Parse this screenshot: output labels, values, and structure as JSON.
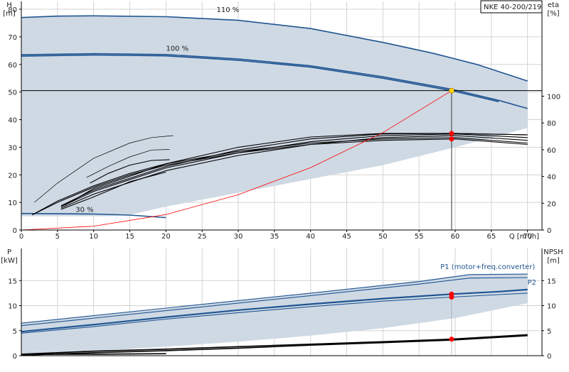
{
  "product_label": "NKE 40-200/219",
  "colors": {
    "envelope_fill": "#cfd9e4",
    "pump_curve": "#1f5591",
    "efficiency": "#000000",
    "system_curve": "#ff0000",
    "operating_point": "#ffd700",
    "marker": "#ff0000"
  },
  "chart_data": [
    {
      "type": "line",
      "id": "head",
      "left_axis_title": [
        "H",
        "[m]"
      ],
      "right_axis_title": [
        "eta",
        "[%]"
      ],
      "xlabel": "Q [m³/h]",
      "xlim": [
        0,
        72
      ],
      "ylim": [
        0,
        80
      ],
      "x_ticks": [
        0,
        5,
        10,
        15,
        20,
        25,
        30,
        35,
        40,
        45,
        50,
        55,
        60,
        65,
        70
      ],
      "y_ticks": [
        0,
        10,
        20,
        30,
        40,
        50,
        60,
        70,
        80
      ],
      "right_ticks": [
        0,
        20,
        40,
        60,
        80,
        100
      ],
      "right_lim": [
        0,
        165
      ],
      "grid": true,
      "envelope": [
        [
          0,
          77
        ],
        [
          5,
          77.5
        ],
        [
          10,
          77.6
        ],
        [
          20,
          77.3
        ],
        [
          30,
          76
        ],
        [
          40,
          73
        ],
        [
          50,
          68
        ],
        [
          57,
          64
        ],
        [
          63,
          60
        ],
        [
          70,
          54
        ],
        [
          70,
          37
        ],
        [
          60,
          30
        ],
        [
          50,
          23.5
        ],
        [
          40,
          18.5
        ],
        [
          30,
          13.5
        ],
        [
          20,
          8.5
        ],
        [
          15,
          5.5
        ],
        [
          12,
          5
        ],
        [
          5,
          5
        ],
        [
          0,
          5
        ]
      ],
      "series": [
        {
          "name": "110 %",
          "kind": "head",
          "points": [
            [
              0,
              77
            ],
            [
              5,
              77.5
            ],
            [
              10,
              77.6
            ],
            [
              20,
              77.3
            ],
            [
              30,
              76
            ],
            [
              40,
              73
            ],
            [
              50,
              68
            ],
            [
              57,
              64
            ],
            [
              63,
              60
            ],
            [
              70,
              54
            ]
          ]
        },
        {
          "name": "100 %",
          "kind": "head",
          "points": [
            [
              0,
              63.5
            ],
            [
              10,
              63.9
            ],
            [
              20,
              63.6
            ],
            [
              30,
              62
            ],
            [
              40,
              59.5
            ],
            [
              50,
              55.5
            ],
            [
              59.5,
              51
            ],
            [
              66,
              47
            ],
            [
              70,
              44
            ]
          ]
        },
        {
          "kind": "head",
          "points": [
            [
              0,
              63
            ],
            [
              10,
              63.4
            ],
            [
              20,
              63.1
            ],
            [
              30,
              61.5
            ],
            [
              40,
              59
            ],
            [
              50,
              55
            ],
            [
              59.5,
              50.5
            ],
            [
              66,
              46.5
            ]
          ]
        },
        {
          "name": "30 %",
          "kind": "head",
          "points": [
            [
              0,
              6
            ],
            [
              10,
              5.8
            ],
            [
              15,
              5.4
            ],
            [
              20,
              4.5
            ]
          ]
        },
        {
          "kind": "eff",
          "points": [
            [
              1.5,
              5.5
            ],
            [
              5,
              10
            ],
            [
              10,
              15.5
            ],
            [
              15,
              20
            ],
            [
              20,
              23.5
            ],
            [
              30,
              28
            ],
            [
              40,
              31
            ],
            [
              50,
              32.5
            ],
            [
              60,
              33
            ],
            [
              70,
              31
            ]
          ]
        },
        {
          "kind": "eff",
          "points": [
            [
              1.5,
              5.5
            ],
            [
              5,
              10.5
            ],
            [
              10,
              16
            ],
            [
              15,
              20.5
            ],
            [
              20,
              24
            ],
            [
              30,
              28.5
            ],
            [
              40,
              31.5
            ],
            [
              50,
              33
            ],
            [
              60,
              33.5
            ],
            [
              70,
              31.5
            ]
          ]
        },
        {
          "kind": "eff",
          "points": [
            [
              5.5,
              8
            ],
            [
              10,
              13
            ],
            [
              20,
              21.5
            ],
            [
              30,
              27
            ],
            [
              40,
              31
            ],
            [
              50,
              33.5
            ],
            [
              60,
              34.2
            ],
            [
              70,
              32.5
            ]
          ]
        },
        {
          "kind": "eff",
          "points": [
            [
              5.5,
              8.5
            ],
            [
              10,
              14
            ],
            [
              20,
              22.5
            ],
            [
              30,
              28
            ],
            [
              40,
              32
            ],
            [
              50,
              34.2
            ],
            [
              60,
              34.8
            ],
            [
              70,
              33.5
            ]
          ]
        },
        {
          "kind": "eff",
          "points": [
            [
              5.5,
              8.8
            ],
            [
              10,
              14.5
            ],
            [
              20,
              23
            ],
            [
              30,
              29
            ],
            [
              40,
              33
            ],
            [
              50,
              34.8
            ],
            [
              60,
              35
            ],
            [
              70,
              34.5
            ]
          ]
        },
        {
          "kind": "eff",
          "points": [
            [
              6,
              9
            ],
            [
              10,
              15
            ],
            [
              20,
              24
            ],
            [
              30,
              30
            ],
            [
              40,
              33.7
            ],
            [
              50,
              35
            ],
            [
              60,
              35
            ],
            [
              70,
              34.5
            ]
          ]
        },
        {
          "kind": "eff",
          "points": [
            [
              5.5,
              7.5
            ],
            [
              10,
              12
            ],
            [
              15,
              17.5
            ],
            [
              20,
              21
            ]
          ]
        },
        {
          "kind": "eff",
          "points": [
            [
              9.5,
              17
            ],
            [
              12,
              20.5
            ],
            [
              15,
              23.5
            ],
            [
              18,
              25.2
            ],
            [
              20.5,
              25.5
            ]
          ]
        },
        {
          "kind": "eff-thin",
          "points": [
            [
              1.8,
              10
            ],
            [
              5,
              17
            ],
            [
              10,
              26
            ],
            [
              15,
              31.5
            ],
            [
              18,
              33.5
            ],
            [
              21,
              34.2
            ]
          ]
        },
        {
          "kind": "eff-thin",
          "points": [
            [
              9,
              19
            ],
            [
              12,
              23
            ],
            [
              15,
              26.5
            ],
            [
              18,
              29
            ],
            [
              20.5,
              29.2
            ]
          ]
        },
        {
          "kind": "system",
          "points": [
            [
              0,
              0
            ],
            [
              10,
              1.4
            ],
            [
              20,
              5.6
            ],
            [
              30,
              12.8
            ],
            [
              40,
              22.6
            ],
            [
              50,
              35.3
            ],
            [
              59.5,
              50.5
            ]
          ]
        }
      ],
      "duty_line_h": 50.5,
      "operating_point": [
        59.5,
        50.5
      ],
      "duty_q": 59.5,
      "markers": [
        [
          59.5,
          35
        ],
        [
          59.5,
          33
        ]
      ]
    },
    {
      "type": "line",
      "id": "power",
      "left_axis_title": [
        "P",
        "[kW]"
      ],
      "right_axis_title": [
        "NPSH",
        "[m]"
      ],
      "xlim": [
        0,
        72
      ],
      "ylim": [
        0,
        20
      ],
      "y_ticks": [
        0,
        5,
        10,
        15
      ],
      "right_ticks": [
        0,
        5,
        10,
        15
      ],
      "grid": true,
      "envelope": [
        [
          0,
          6.5
        ],
        [
          20,
          9.5
        ],
        [
          40,
          12.5
        ],
        [
          55,
          15
        ],
        [
          62,
          16.3
        ],
        [
          70,
          16.3
        ],
        [
          70,
          10.5
        ],
        [
          60,
          7.5
        ],
        [
          50,
          5.5
        ],
        [
          40,
          4
        ],
        [
          30,
          2.8
        ],
        [
          20,
          1.8
        ],
        [
          10,
          0.9
        ],
        [
          0,
          0.2
        ]
      ],
      "series": [
        {
          "name": "P1 (motor+freq.converter)",
          "kind": "power-thin",
          "points": [
            [
              0,
              6.5
            ],
            [
              20,
              9.5
            ],
            [
              40,
              12.5
            ],
            [
              55,
              14.8
            ],
            [
              62,
              16.2
            ],
            [
              70,
              16.3
            ]
          ]
        },
        {
          "kind": "power-thin",
          "points": [
            [
              0,
              6
            ],
            [
              20,
              9
            ],
            [
              40,
              12
            ],
            [
              55,
              14.3
            ],
            [
              62,
              15.5
            ],
            [
              70,
              15.6
            ]
          ]
        },
        {
          "name": "P2",
          "kind": "power",
          "points": [
            [
              0,
              4.8
            ],
            [
              10,
              6.2
            ],
            [
              20,
              7.7
            ],
            [
              30,
              9.1
            ],
            [
              40,
              10.3
            ],
            [
              50,
              11.4
            ],
            [
              59.5,
              12.3
            ],
            [
              66,
              12.8
            ],
            [
              70,
              13.2
            ]
          ]
        },
        {
          "kind": "power-thin",
          "points": [
            [
              0,
              4.5
            ],
            [
              10,
              5.8
            ],
            [
              20,
              7.3
            ],
            [
              30,
              8.6
            ],
            [
              40,
              9.8
            ],
            [
              50,
              10.9
            ],
            [
              59.5,
              11.7
            ],
            [
              66,
              12.2
            ],
            [
              70,
              12.5
            ]
          ]
        },
        {
          "kind": "npsh",
          "points": [
            [
              0,
              0.3
            ],
            [
              10,
              0.9
            ],
            [
              20,
              1.3
            ],
            [
              30,
              1.8
            ],
            [
              40,
              2.3
            ],
            [
              50,
              2.8
            ],
            [
              59.5,
              3.3
            ],
            [
              70,
              4.2
            ]
          ]
        },
        {
          "kind": "npsh",
          "points": [
            [
              0,
              0.1
            ],
            [
              10,
              0.6
            ],
            [
              20,
              1
            ],
            [
              30,
              1.5
            ],
            [
              40,
              2.1
            ],
            [
              50,
              2.6
            ],
            [
              59.5,
              3.1
            ],
            [
              70,
              4
            ]
          ]
        },
        {
          "kind": "npsh",
          "points": [
            [
              0,
              0.2
            ],
            [
              5,
              0.3
            ],
            [
              10,
              0.3
            ],
            [
              20,
              0.4
            ]
          ]
        }
      ],
      "markers": [
        [
          59.5,
          12.3
        ],
        [
          59.5,
          11.7
        ],
        [
          59.5,
          3.3
        ]
      ]
    }
  ]
}
